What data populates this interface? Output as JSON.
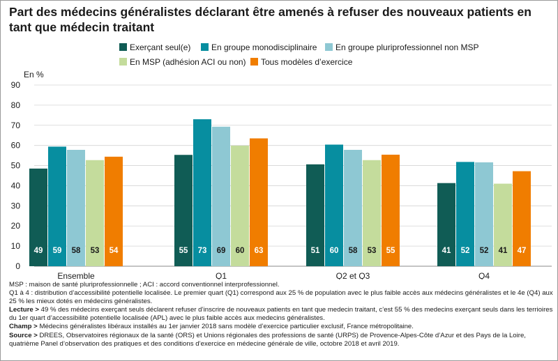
{
  "title": "Part des médecins généralistes déclarant être amenés à refuser des nouveaux patients en tant que médecin traitant",
  "chart_data": {
    "type": "bar",
    "title": "Part des médecins généralistes déclarant être amenés à refuser des nouveaux patients en tant que médecin traitant",
    "ylabel": "En %",
    "xlabel": "",
    "ylim": [
      0,
      90
    ],
    "yticks": [
      0,
      10,
      20,
      30,
      40,
      50,
      60,
      70,
      80,
      90
    ],
    "grid": true,
    "legend_position": "top",
    "categories": [
      "Ensemble",
      "Q1",
      "Q2 et Q3",
      "Q4"
    ],
    "series": [
      {
        "name": "Exerçant seul(e)",
        "color": "#105c55",
        "label_color": "#ffffff",
        "values": [
          49,
          55,
          51,
          41
        ],
        "heights": [
          48.5,
          55.3,
          50.6,
          41.3
        ]
      },
      {
        "name": "En groupe monodisciplinaire",
        "color": "#078ea0",
        "label_color": "#ffffff",
        "values": [
          59,
          73,
          60,
          52
        ],
        "heights": [
          59.4,
          73.0,
          60.4,
          51.8
        ]
      },
      {
        "name": "En groupe pluriprofessionnel non MSP",
        "color": "#8ec8d3",
        "label_color": "#1a1a1a",
        "values": [
          58,
          69,
          58,
          52
        ],
        "heights": [
          57.8,
          69.3,
          57.8,
          51.6
        ]
      },
      {
        "name": "En MSP (adhésion ACI ou non)",
        "color": "#c4dc9c",
        "label_color": "#1a1a1a",
        "values": [
          53,
          60,
          53,
          41
        ],
        "heights": [
          52.7,
          59.9,
          52.7,
          41.0
        ]
      },
      {
        "name": "Tous modèles d’exercice",
        "color": "#f07d00",
        "label_color": "#ffffff",
        "values": [
          54,
          63,
          55,
          47
        ],
        "heights": [
          54.4,
          63.5,
          55.4,
          47.2
        ]
      }
    ]
  },
  "notes": {
    "msp_def": "MSP : maison de santé pluriprofessionnelle ; ACI : accord conventionnel interprofessionnel.",
    "quartiles": "Q1 à 4 : distribution d’accessibilité potentielle localisée. Le premier quart (Q1) correspond aux 25 % de population avec le plus faible accès aux médecins généralistes et le 4e (Q4) aux 25 % les mieux dotés en médecins généralistes.",
    "lecture_label": "Lecture >",
    "lecture_text": "49 % des médecins exerçant seuls déclarent refuser d’inscrire de nouveaux patients en tant que medecin traitant, c’est 55 % des medecins exerçant seuls dans les terrioires du 1er quart d’accessibilité potentielle localisée (APL) avec le plus faible accès aux medecins généralistes.",
    "champ_label": "Champ >",
    "champ_text": "Médecins généralistes libéraux installés au 1er janvier 2018 sans modèle d’exercice particulier exclusif, France métropolitaine.",
    "source_label": "Source >",
    "source_text": "DREES, Observatoires régionaux de la santé (ORS) et Unions régionales des professions de santé (URPS) de Provence-Alpes-Côte d’Azur et des Pays de la Loire, quatrième Panel d’observation des pratiques et des conditions d’exercice en médecine générale de ville, octobre 2018 et avril 2019."
  }
}
